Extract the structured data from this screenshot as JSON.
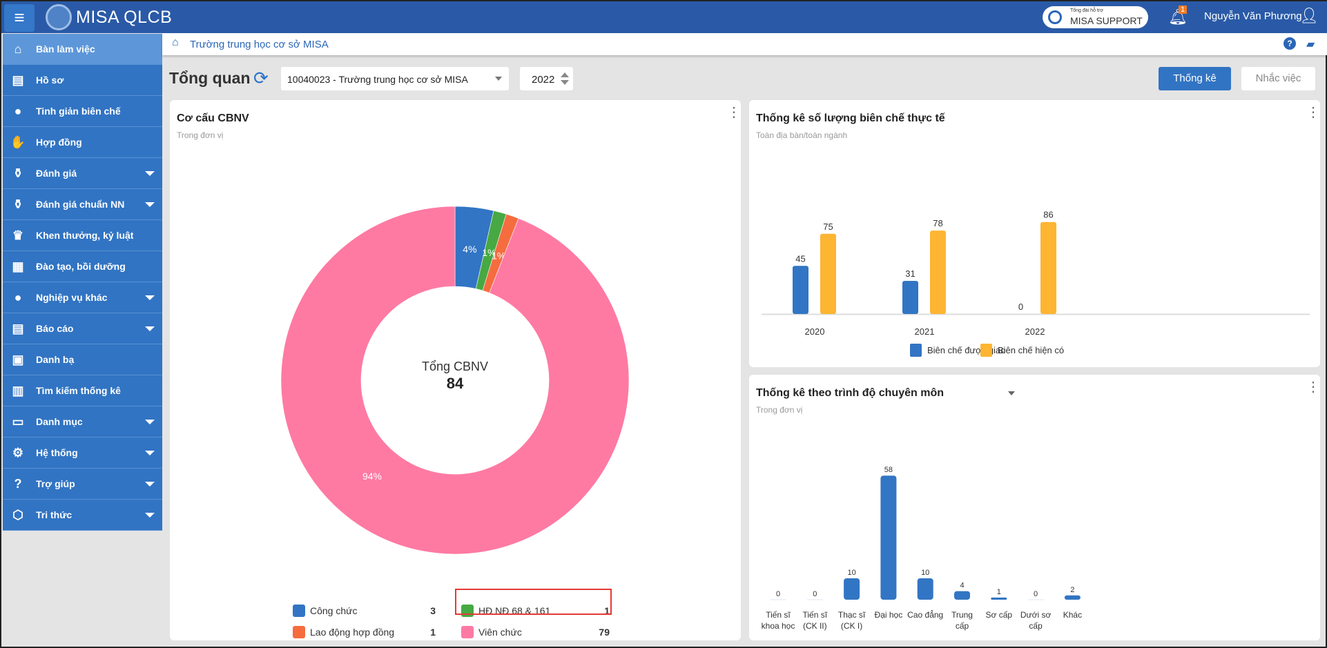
{
  "header": {
    "app_name": "MISA QLCB",
    "support_small": "Tổng đài hỗ trợ",
    "support_label": "MISA SUPPORT",
    "notification_count": "1",
    "user_name": "Nguyễn Văn Phương"
  },
  "sidebar": {
    "items": [
      {
        "label": "Bàn làm việc",
        "icon": "home-icon",
        "glyph": "⌂",
        "expand": false,
        "active": true
      },
      {
        "label": "Hồ sơ",
        "icon": "id-card-icon",
        "glyph": "▤",
        "expand": false
      },
      {
        "label": "Tinh giản biên chế",
        "icon": "more-circle-icon",
        "glyph": "●",
        "expand": false
      },
      {
        "label": "Hợp đồng",
        "icon": "handshake-icon",
        "glyph": "✋",
        "expand": false
      },
      {
        "label": "Đánh giá",
        "icon": "medal-icon",
        "glyph": "⚱",
        "expand": true
      },
      {
        "label": "Đánh giá chuẩn NN",
        "icon": "medal-icon",
        "glyph": "⚱",
        "expand": true
      },
      {
        "label": "Khen thưởng, kỷ luật",
        "icon": "trophy-icon",
        "glyph": "♛",
        "expand": false
      },
      {
        "label": "Đào tạo, bồi dưỡng",
        "icon": "presentation-icon",
        "glyph": "▦",
        "expand": false
      },
      {
        "label": "Nghiệp vụ khác",
        "icon": "more-circle-icon",
        "glyph": "●",
        "expand": true
      },
      {
        "label": "Báo cáo",
        "icon": "document-icon",
        "glyph": "▤",
        "expand": true
      },
      {
        "label": "Danh bạ",
        "icon": "contacts-icon",
        "glyph": "▣",
        "expand": false
      },
      {
        "label": "Tìm kiếm thống kê",
        "icon": "bar-chart-icon",
        "glyph": "▥",
        "expand": false
      },
      {
        "label": "Danh mục",
        "icon": "book-icon",
        "glyph": "▭",
        "expand": true
      },
      {
        "label": "Hệ thống",
        "icon": "gear-icon",
        "glyph": "⚙",
        "expand": true
      },
      {
        "label": "Trợ giúp",
        "icon": "question-icon",
        "glyph": "?",
        "expand": true
      },
      {
        "label": "Tri thức",
        "icon": "cube-icon",
        "glyph": "⬡",
        "expand": true
      }
    ]
  },
  "breadcrumb": {
    "text": "Trường trung học cơ sở MISA"
  },
  "toolbar": {
    "title": "Tổng quan",
    "unit_select": "10040023 - Trường trung học cơ sở MISA",
    "year": "2022",
    "stats_button": "Thống kê",
    "reminder_button": "Nhắc việc"
  },
  "colors": {
    "blue": "#3275c4",
    "green": "#47a943",
    "orange": "#f56c3f",
    "pink": "#fe7aa3",
    "yellow": "#fdb532"
  },
  "chart_data": [
    {
      "type": "pie",
      "title": "Cơ cấu CBNV",
      "subtitle": "Trong đơn vị",
      "center_label": "Tổng CBNV",
      "center_value": "84",
      "slices": [
        {
          "name": "Công chức",
          "value": 3,
          "percent": "4%",
          "color": "#3275c4"
        },
        {
          "name": "HĐ NĐ 68 & 161",
          "value": 1,
          "percent": "1%",
          "color": "#47a943"
        },
        {
          "name": "Lao động hợp đồng",
          "value": 1,
          "percent": "1%",
          "color": "#f56c3f"
        },
        {
          "name": "Viên chức",
          "value": 79,
          "percent": "94%",
          "color": "#fe7aa3"
        }
      ]
    },
    {
      "type": "bar",
      "title": "Thống kê số lượng biên chế thực tế",
      "subtitle": "Toàn địa bàn/toàn ngành",
      "categories": [
        "2020",
        "2021",
        "2022"
      ],
      "series": [
        {
          "name": "Biên chế được giao",
          "values": [
            45,
            31,
            0
          ],
          "color": "#3275c4"
        },
        {
          "name": "Biên chế hiện có",
          "values": [
            75,
            78,
            86
          ],
          "color": "#fdb532"
        }
      ],
      "legend": "bottom"
    },
    {
      "type": "bar",
      "title": "Thống kê theo trình độ chuyên môn",
      "subtitle": "Trong đơn vị",
      "categories": [
        "Tiến sĩ\nkhoa học",
        "Tiến sĩ\n(CK II)",
        "Thạc sĩ\n(CK I)",
        "Đại học",
        "Cao đẳng",
        "Trung\ncấp",
        "Sơ cấp",
        "Dưới sơ\ncấp",
        "Khác"
      ],
      "values": [
        0,
        0,
        10,
        58,
        10,
        4,
        1,
        0,
        2
      ],
      "color": "#3275c4"
    }
  ]
}
